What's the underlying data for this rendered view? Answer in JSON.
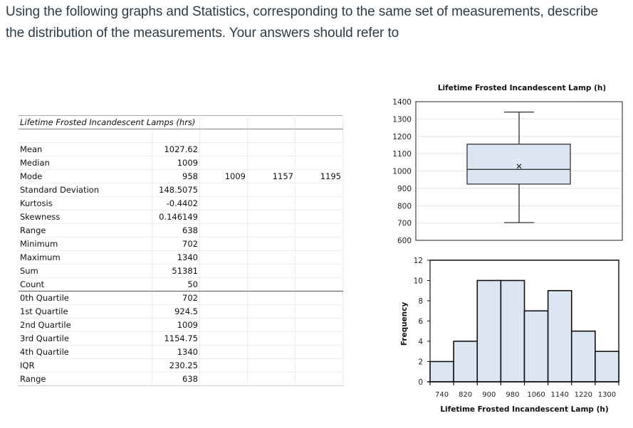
{
  "prompt": {
    "line1": "Using the following graphs and Statistics, corresponding to the same set of measurements, describe",
    "line2": "the distribution of the measurements. Your answers should refer to"
  },
  "table": {
    "title": "Lifetime Frosted Incandescent Lamps (hrs)",
    "rows": [
      {
        "label": "Mean",
        "value": "1027.62"
      },
      {
        "label": "Median",
        "value": "1009"
      },
      {
        "label": "Mode",
        "value": "958",
        "extra": [
          "1009",
          "1157",
          "1195"
        ]
      },
      {
        "label": "Standard Deviation",
        "value": "148.5075"
      },
      {
        "label": "Kurtosis",
        "value": "-0.4402"
      },
      {
        "label": "Skewness",
        "value": "0.146149"
      },
      {
        "label": "Range",
        "value": "638"
      },
      {
        "label": "Minimum",
        "value": "702"
      },
      {
        "label": "Maximum",
        "value": "1340"
      },
      {
        "label": "Sum",
        "value": "51381"
      },
      {
        "label": "Count",
        "value": "50"
      },
      {
        "label": "0th Quartile",
        "value": "702"
      },
      {
        "label": "1st Quartile",
        "value": "924.5"
      },
      {
        "label": "2nd Quartile",
        "value": "1009"
      },
      {
        "label": "3rd Quartile",
        "value": "1154.75"
      },
      {
        "label": "4th Quartile",
        "value": "1340"
      },
      {
        "label": "IQR",
        "value": "230.25"
      },
      {
        "label": "Range",
        "value": "638"
      }
    ]
  },
  "colors": {
    "fill": "#dce6f2",
    "stroke": "#1a1a1a",
    "grid": "#e4e4e4",
    "text": "#2d3b45"
  },
  "chart_data": [
    {
      "type": "boxplot",
      "title": "Lifetime Frosted Incandescent Lamp (h)",
      "ylim": [
        600,
        1400
      ],
      "yticks": [
        600,
        700,
        800,
        900,
        1000,
        1100,
        1200,
        1300,
        1400
      ],
      "grid": true,
      "min": 702,
      "q1": 924.5,
      "median": 1009,
      "q3": 1154.75,
      "max": 1340,
      "mean": 1027.62
    },
    {
      "type": "bar",
      "subtype": "histogram",
      "title": "",
      "xlabel": "Lifetime Frosted Incandescent Lamp (h)",
      "ylabel": "Frequency",
      "categories": [
        "740",
        "820",
        "900",
        "980",
        "1060",
        "1140",
        "1220",
        "1300"
      ],
      "values": [
        2,
        4,
        10,
        10,
        7,
        9,
        5,
        3
      ],
      "ylim": [
        0,
        12
      ],
      "yticks": [
        0,
        2,
        4,
        6,
        8,
        10,
        12
      ]
    }
  ]
}
